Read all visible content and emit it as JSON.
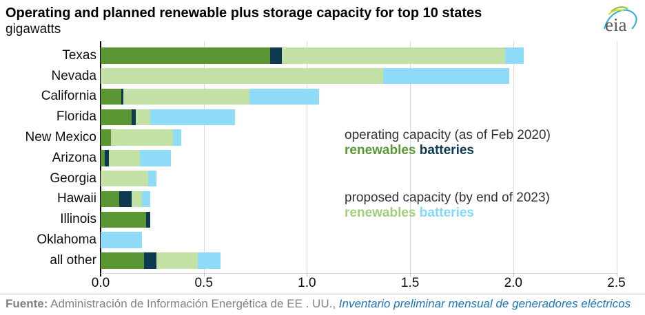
{
  "header": {
    "title": "Operating and planned renewable plus storage capacity for top 10 states",
    "subtitle": "gigawatts",
    "logo_text": "eia"
  },
  "legend": {
    "operating_label": "operating capacity (as of Feb 2020)",
    "operating_renewables": "renewables",
    "operating_batteries": "batteries",
    "proposed_label": "proposed capacity (by end of 2023)",
    "proposed_renewables": "renewables",
    "proposed_batteries": "batteries"
  },
  "footer": {
    "source_label": "Fuente:",
    "source_text": " Administración de Información Energética de EE . UU., ",
    "source_link": "Inventario preliminar mensual de generadores eléctricos"
  },
  "colors": {
    "operating_renewables": "#5b9634",
    "operating_batteries": "#0d3a52",
    "proposed_renewables": "#c3e1a5",
    "proposed_batteries": "#8edcf8",
    "legend_operating_renewables_text": "#5b9634",
    "legend_operating_batteries_text": "#0d3a52",
    "legend_proposed_renewables_text": "#a2cd7b",
    "legend_proposed_batteries_text": "#82d8f7",
    "gridline": "#d9d9d9",
    "axis": "#000000",
    "footer_link": "#1b75bc"
  },
  "chart_data": {
    "type": "bar",
    "orientation": "horizontal",
    "stacked": true,
    "title": "Operating and planned renewable plus storage capacity for top 10 states",
    "unit": "gigawatts",
    "grid": true,
    "xlim": [
      0,
      2.5
    ],
    "xticks": [
      0,
      0.5,
      1.0,
      1.5,
      2.0,
      2.5
    ],
    "xtick_labels": [
      "0.0",
      "0.5",
      "1.0",
      "1.5",
      "2.0",
      "2.5"
    ],
    "categories": [
      "Texas",
      "Nevada",
      "California",
      "Florida",
      "New Mexico",
      "Arizona",
      "Georgia",
      "Hawaii",
      "Illinois",
      "Oklahoma",
      "all other"
    ],
    "series": [
      {
        "name": "operating renewables",
        "color": "#5b9634",
        "values": [
          0.82,
          0.0,
          0.1,
          0.15,
          0.05,
          0.02,
          0.0,
          0.09,
          0.22,
          0.0,
          0.21
        ]
      },
      {
        "name": "operating batteries",
        "color": "#0d3a52",
        "values": [
          0.06,
          0.0,
          0.01,
          0.02,
          0.0,
          0.02,
          0.0,
          0.06,
          0.02,
          0.0,
          0.06
        ]
      },
      {
        "name": "proposed renewables",
        "color": "#c3e1a5",
        "values": [
          1.08,
          1.37,
          0.61,
          0.07,
          0.3,
          0.15,
          0.23,
          0.05,
          0.0,
          0.0,
          0.2
        ]
      },
      {
        "name": "proposed batteries",
        "color": "#8edcf8",
        "values": [
          0.09,
          0.61,
          0.34,
          0.41,
          0.04,
          0.15,
          0.04,
          0.04,
          0.0,
          0.2,
          0.11
        ]
      }
    ]
  }
}
